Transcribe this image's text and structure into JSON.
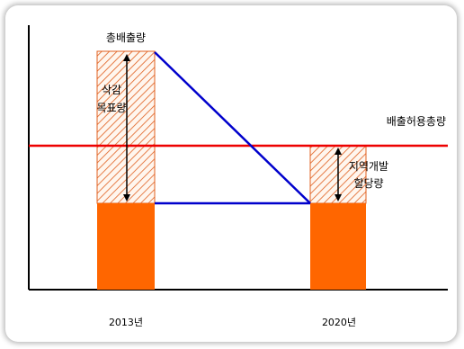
{
  "labels": {
    "total_emissions": "총배출량",
    "reduction_target_line1": "삭감",
    "reduction_target_line2": "목표량",
    "allowed_total": "배출허용총량",
    "regional_dev_line1": "지역개발",
    "regional_dev_line2": "할당량",
    "year_left": "2013년",
    "year_right": "2020년"
  },
  "colors": {
    "bar_fill": "#ff6600",
    "hatch_stroke": "#e06020",
    "allowed_line": "#ee0000",
    "trend_line": "#0000cc",
    "axis": "#000000"
  }
}
